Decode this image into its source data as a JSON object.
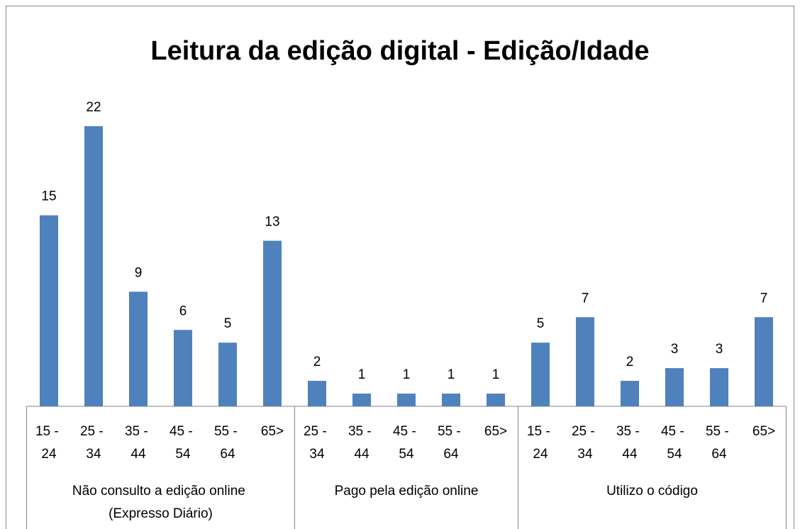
{
  "chart_data": {
    "type": "bar",
    "title": "Leitura da edição digital - Edição/Idade",
    "color": "#4f81bd",
    "ylim": [
      0,
      24
    ],
    "groups": [
      {
        "name": "Não consulto a edição online (Expresso Diário)",
        "categories": [
          "15 - 24",
          "25 - 34",
          "35 - 44",
          "45 - 54",
          "55 - 64",
          "65>"
        ],
        "values": [
          15,
          22,
          9,
          6,
          5,
          13
        ]
      },
      {
        "name": "Pago pela edição online",
        "categories": [
          "25 - 34",
          "35 - 44",
          "45 - 54",
          "55 - 64",
          "65>"
        ],
        "values": [
          2,
          1,
          1,
          1,
          1
        ]
      },
      {
        "name": "Utilizo o código",
        "categories": [
          "15 - 24",
          "25 - 34",
          "35 - 44",
          "45 - 54",
          "55 - 64",
          "65>"
        ],
        "values": [
          5,
          7,
          2,
          3,
          3,
          7
        ]
      }
    ]
  }
}
